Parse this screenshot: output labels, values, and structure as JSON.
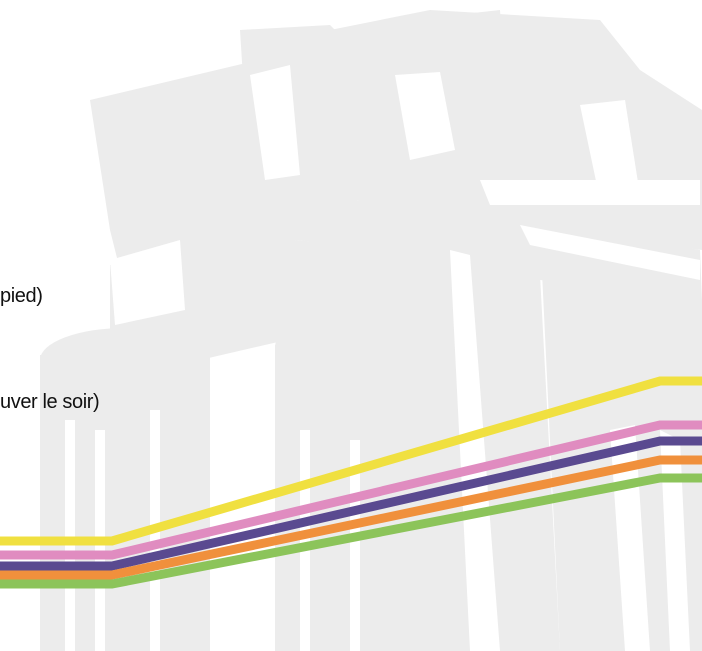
{
  "slide": {
    "text_lines": [
      "pied)",
      "uver le soir)"
    ]
  },
  "decor": {
    "watermark_icon": "castle-building-silhouette",
    "watermark_color": "#ececec",
    "stripes": [
      {
        "name": "yellow",
        "color": "#f0e040"
      },
      {
        "name": "pink",
        "color": "#e08cc0"
      },
      {
        "name": "purple",
        "color": "#5a4a90"
      },
      {
        "name": "orange",
        "color": "#f0903c"
      },
      {
        "name": "green",
        "color": "#8cc45a"
      }
    ]
  }
}
